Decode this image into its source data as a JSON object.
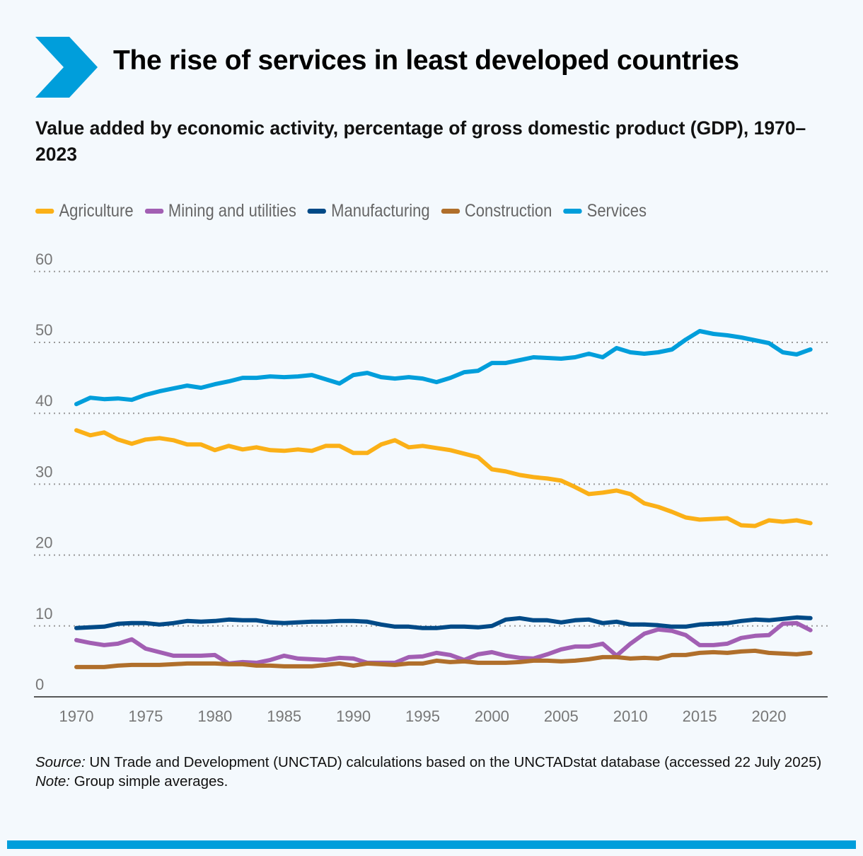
{
  "header": {
    "title": "The rise of services in least developed countries",
    "brand_color": "#009edb"
  },
  "subtitle": "Value added by economic activity, percentage of gross domestic product (GDP), 1970–2023",
  "notes": {
    "source_label": "Source:",
    "source_text": " UN Trade and Development (UNCTAD) calculations based on the UNCTADstat database (accessed 22 July 2025)",
    "note_label": "Note:",
    "note_text": " Group simple averages."
  },
  "chart_data": {
    "type": "line",
    "title": "Value added by economic activity, percentage of gross domestic product (GDP), 1970–2023",
    "xlabel": "",
    "ylabel": "",
    "ylim": [
      0,
      60
    ],
    "yticks": [
      "0",
      "10",
      "20",
      "30",
      "40",
      "50",
      "60"
    ],
    "xticks": [
      "1970",
      "1975",
      "1980",
      "1985",
      "1990",
      "1995",
      "2000",
      "2005",
      "2010",
      "2015",
      "2020"
    ],
    "grid": true,
    "legend_position": "top-left",
    "x_start": 1970,
    "series": [
      {
        "name": "Agriculture",
        "color": "#fbb017",
        "values": [
          37.6,
          36.9,
          37.3,
          36.3,
          35.7,
          36.3,
          36.5,
          36.2,
          35.6,
          35.6,
          34.8,
          35.4,
          34.9,
          35.2,
          34.8,
          34.7,
          34.9,
          34.7,
          35.4,
          35.4,
          34.4,
          34.4,
          35.6,
          36.2,
          35.2,
          35.4,
          35.1,
          34.8,
          34.3,
          33.8,
          32.1,
          31.8,
          31.3,
          31.0,
          30.8,
          30.5,
          29.6,
          28.6,
          28.8,
          29.1,
          28.6,
          27.3,
          26.8,
          26.1,
          25.3,
          25.0,
          25.1,
          25.2,
          24.2,
          24.1,
          24.9,
          24.7,
          24.9,
          24.5
        ]
      },
      {
        "name": "Mining and utilities",
        "color": "#a25fb3",
        "values": [
          8.0,
          7.6,
          7.3,
          7.5,
          8.1,
          6.8,
          6.3,
          5.8,
          5.8,
          5.8,
          5.9,
          4.7,
          4.9,
          4.8,
          5.2,
          5.8,
          5.4,
          5.3,
          5.2,
          5.5,
          5.4,
          4.8,
          4.8,
          4.8,
          5.6,
          5.7,
          6.2,
          5.9,
          5.2,
          6.0,
          6.3,
          5.8,
          5.5,
          5.4,
          6.0,
          6.7,
          7.1,
          7.1,
          7.5,
          5.8,
          7.5,
          8.9,
          9.5,
          9.3,
          8.7,
          7.3,
          7.3,
          7.5,
          8.3,
          8.6,
          8.7,
          10.3,
          10.4,
          9.4
        ]
      },
      {
        "name": "Manufacturing",
        "color": "#004a87",
        "values": [
          9.7,
          9.8,
          9.9,
          10.3,
          10.4,
          10.4,
          10.2,
          10.4,
          10.7,
          10.6,
          10.7,
          10.9,
          10.8,
          10.8,
          10.5,
          10.4,
          10.5,
          10.6,
          10.6,
          10.7,
          10.7,
          10.6,
          10.2,
          9.9,
          9.9,
          9.7,
          9.7,
          9.9,
          9.9,
          9.8,
          10.0,
          10.9,
          11.1,
          10.8,
          10.8,
          10.5,
          10.8,
          10.9,
          10.4,
          10.6,
          10.2,
          10.2,
          10.1,
          9.9,
          9.9,
          10.2,
          10.3,
          10.4,
          10.7,
          10.9,
          10.8,
          11.0,
          11.2,
          11.1
        ]
      },
      {
        "name": "Construction",
        "color": "#b06f2b",
        "values": [
          4.2,
          4.2,
          4.2,
          4.4,
          4.5,
          4.5,
          4.5,
          4.6,
          4.7,
          4.7,
          4.7,
          4.6,
          4.6,
          4.4,
          4.4,
          4.3,
          4.3,
          4.3,
          4.5,
          4.7,
          4.4,
          4.7,
          4.6,
          4.5,
          4.7,
          4.7,
          5.1,
          4.9,
          5.0,
          4.8,
          4.8,
          4.8,
          4.9,
          5.1,
          5.1,
          5.0,
          5.1,
          5.3,
          5.6,
          5.6,
          5.4,
          5.5,
          5.4,
          5.9,
          5.9,
          6.2,
          6.3,
          6.2,
          6.4,
          6.5,
          6.2,
          6.1,
          6.0,
          6.2
        ]
      },
      {
        "name": "Services",
        "color": "#009edb",
        "values": [
          41.3,
          42.2,
          42.0,
          42.1,
          41.9,
          42.6,
          43.1,
          43.5,
          43.9,
          43.6,
          44.1,
          44.5,
          45.0,
          45.0,
          45.2,
          45.1,
          45.2,
          45.4,
          44.8,
          44.2,
          45.4,
          45.7,
          45.1,
          44.9,
          45.1,
          44.9,
          44.4,
          45.0,
          45.8,
          46.0,
          47.1,
          47.1,
          47.5,
          47.9,
          47.8,
          47.7,
          47.9,
          48.4,
          47.9,
          49.2,
          48.6,
          48.4,
          48.6,
          49.0,
          50.4,
          51.6,
          51.2,
          51.0,
          50.7,
          50.3,
          49.9,
          48.6,
          48.3,
          49.0
        ]
      }
    ]
  }
}
